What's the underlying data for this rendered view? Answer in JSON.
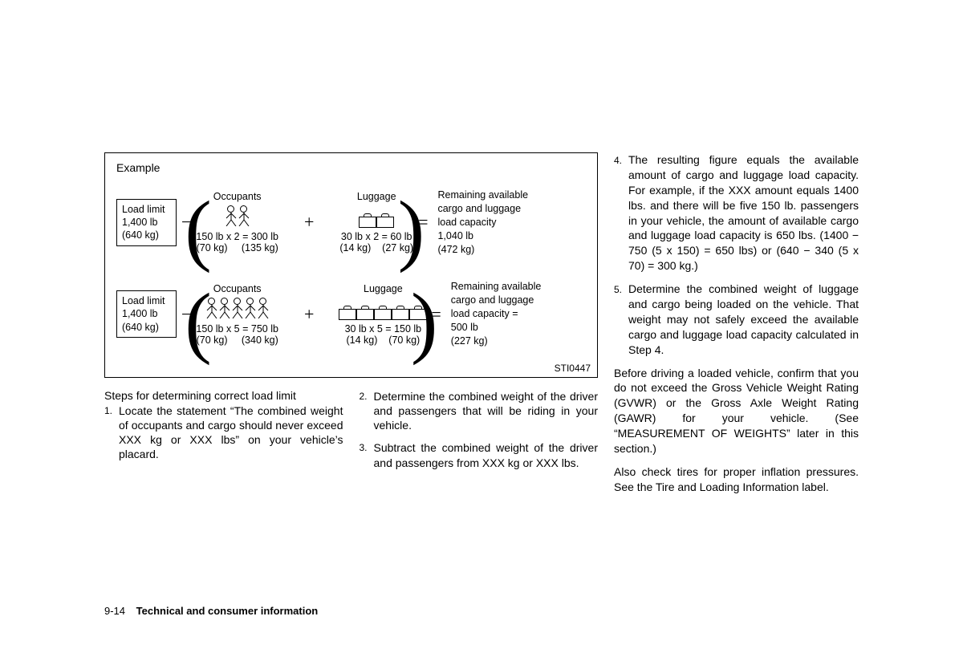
{
  "example": {
    "label": "Example",
    "figure_code": "STI0447",
    "rows": [
      {
        "load_limit": {
          "line1": "Load limit",
          "line2": "1,400 lb",
          "line3": "(640 kg)"
        },
        "occupants": {
          "heading": "Occupants",
          "count": 2,
          "calc": "150 lb x 2 = 300 lb",
          "sub": "(70 kg)     (135 kg)"
        },
        "luggage": {
          "heading": "Luggage",
          "count": 2,
          "calc": "30 lb x 2 = 60 lb",
          "sub": "(14 kg)    (27 kg)"
        },
        "result": "Remaining available cargo and luggage load capacity\n1,040 lb\n(472 kg)"
      },
      {
        "load_limit": {
          "line1": "Load limit",
          "line2": "1,400 lb",
          "line3": "(640 kg)"
        },
        "occupants": {
          "heading": "Occupants",
          "count": 5,
          "calc": "150 lb x 5 = 750 lb",
          "sub": "(70 kg)     (340 kg)"
        },
        "luggage": {
          "heading": "Luggage",
          "count": 5,
          "calc": "30 lb x 5 = 150 lb",
          "sub": "(14 kg)    (70 kg)"
        },
        "result": "Remaining available cargo and luggage load capacity =\n500 lb\n(227 kg)"
      }
    ]
  },
  "steps": {
    "heading": "Steps for determining correct load limit",
    "items": [
      "Locate the statement “The combined weight of occupants and cargo should never exceed XXX kg or XXX lbs” on your vehicle’s placard.",
      "Determine the combined weight of the driver and passengers that will be riding in your vehicle.",
      "Subtract the combined weight of the driver and passengers from XXX kg or XXX lbs."
    ]
  },
  "right": {
    "items_start": 4,
    "items": [
      "The resulting figure equals the available amount of cargo and luggage load capacity. For example, if the XXX amount equals 1400 lbs. and there will be five 150 lb. passengers in your vehicle, the amount of available cargo and luggage load capacity is 650 lbs. (1400 − 750 (5 x 150) = 650 lbs) or (640 − 340 (5 x 70) = 300 kg.)",
      "Determine the combined weight of luggage and cargo being loaded on the vehicle. That weight may not safely exceed the available cargo and luggage load capacity calculated in Step 4."
    ],
    "para1": "Before driving a loaded vehicle, confirm that you do not exceed the Gross Vehicle Weight Rating (GVWR) or the Gross Axle Weight Rating (GAWR) for your vehicle. (See “MEASUREMENT OF WEIGHTS” later in this section.)",
    "para2": "Also check tires for proper inflation pressures. See the Tire and Loading Information label."
  },
  "footer": {
    "page": "9-14",
    "section": "Technical and consumer information"
  }
}
